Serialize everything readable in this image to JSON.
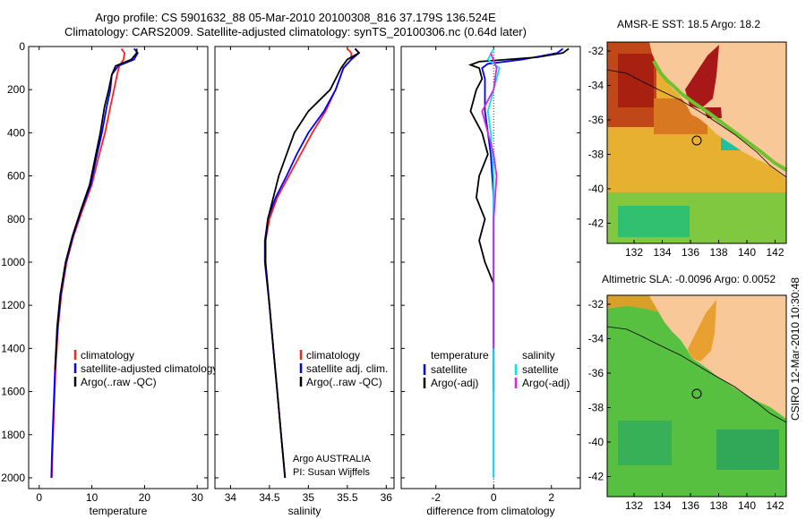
{
  "title_line1": "Argo profile: CS 5901632_88 05-Mar-2010 20100308_816 37.179S 136.524E",
  "title_line2": "Climatology: CARS2009. Satellite-adjusted climatology: synTS_20100306.nc (0.64d later)",
  "credit": "CSIRO 12-Mar-2010 10:30:48",
  "chart_data": [
    {
      "type": "line",
      "xlabel": "temperature",
      "xlim": [
        -2,
        32
      ],
      "ylim": [
        0,
        2050
      ],
      "y_reversed": true,
      "xticks": [
        0,
        10,
        20,
        30
      ],
      "yticks": [
        0,
        200,
        400,
        600,
        800,
        1000,
        1200,
        1400,
        1600,
        1800,
        2000
      ],
      "legend": [
        "climatology",
        "satellite-adjusted climatology",
        "Argo(..raw -QC)"
      ],
      "series": [
        {
          "name": "climatology",
          "color": "#ff2020",
          "points": [
            [
              15.6,
              10
            ],
            [
              16.2,
              30
            ],
            [
              16.0,
              60
            ],
            [
              15.2,
              90
            ],
            [
              14.8,
              130
            ],
            [
              14.2,
              200
            ],
            [
              13.5,
              280
            ],
            [
              12.5,
              400
            ],
            [
              11.2,
              520
            ],
            [
              10.0,
              640
            ],
            [
              8.2,
              760
            ],
            [
              6.5,
              880
            ],
            [
              5.2,
              1000
            ],
            [
              4.2,
              1150
            ],
            [
              3.6,
              1300
            ],
            [
              3.1,
              1500
            ],
            [
              2.8,
              1700
            ],
            [
              2.5,
              1900
            ],
            [
              2.4,
              2000
            ]
          ]
        },
        {
          "name": "satellite-adjusted climatology",
          "color": "#0000ff",
          "points": [
            [
              18.0,
              10
            ],
            [
              18.7,
              30
            ],
            [
              18.0,
              60
            ],
            [
              15.0,
              90
            ],
            [
              13.8,
              130
            ],
            [
              13.5,
              200
            ],
            [
              12.8,
              280
            ],
            [
              11.9,
              400
            ],
            [
              10.8,
              520
            ],
            [
              9.8,
              640
            ],
            [
              8.0,
              760
            ],
            [
              6.4,
              880
            ],
            [
              5.1,
              1000
            ],
            [
              4.1,
              1150
            ],
            [
              3.5,
              1300
            ],
            [
              3.0,
              1500
            ],
            [
              2.7,
              1700
            ],
            [
              2.4,
              1900
            ],
            [
              2.3,
              2000
            ]
          ]
        },
        {
          "name": "Argo(..raw -QC)",
          "color": "#000000",
          "points": [
            [
              18.5,
              10
            ],
            [
              18.5,
              30
            ],
            [
              17.5,
              60
            ],
            [
              14.5,
              90
            ],
            [
              13.8,
              130
            ],
            [
              13.2,
              200
            ],
            [
              12.4,
              280
            ],
            [
              11.6,
              400
            ],
            [
              10.6,
              520
            ],
            [
              9.6,
              640
            ],
            [
              7.9,
              760
            ],
            [
              6.3,
              880
            ],
            [
              5.0,
              1000
            ],
            [
              4.0,
              1150
            ],
            [
              3.4,
              1300
            ],
            [
              3.0,
              1500
            ]
          ]
        }
      ]
    },
    {
      "type": "line",
      "xlabel": "salinity",
      "xlim": [
        33.8,
        36.1
      ],
      "ylim": [
        0,
        2050
      ],
      "y_reversed": true,
      "xticks": [
        34,
        34.5,
        35,
        35.5,
        36
      ],
      "legend": [
        "climatology",
        "satellite adj. clim.",
        "Argo(..raw -QC)"
      ],
      "annotation": [
        "Argo AUSTRALIA",
        "PI: Susan Wijffels"
      ],
      "series": [
        {
          "name": "climatology",
          "color": "#ff2020",
          "points": [
            [
              35.5,
              10
            ],
            [
              35.55,
              30
            ],
            [
              35.55,
              60
            ],
            [
              35.45,
              100
            ],
            [
              35.35,
              200
            ],
            [
              35.22,
              300
            ],
            [
              35.05,
              400
            ],
            [
              34.9,
              500
            ],
            [
              34.75,
              600
            ],
            [
              34.6,
              700
            ],
            [
              34.5,
              800
            ],
            [
              34.45,
              900
            ],
            [
              34.45,
              1000
            ],
            [
              34.5,
              1200
            ],
            [
              34.55,
              1400
            ],
            [
              34.6,
              1600
            ],
            [
              34.65,
              1800
            ],
            [
              34.7,
              2000
            ]
          ]
        },
        {
          "name": "satellite adj. clim.",
          "color": "#0000ff",
          "points": [
            [
              35.6,
              10
            ],
            [
              35.65,
              30
            ],
            [
              35.55,
              60
            ],
            [
              35.45,
              100
            ],
            [
              35.35,
              200
            ],
            [
              35.2,
              300
            ],
            [
              35.0,
              400
            ],
            [
              34.85,
              500
            ],
            [
              34.72,
              600
            ],
            [
              34.58,
              700
            ],
            [
              34.48,
              800
            ],
            [
              34.44,
              900
            ],
            [
              34.44,
              1000
            ],
            [
              34.5,
              1200
            ],
            [
              34.55,
              1400
            ],
            [
              34.6,
              1600
            ],
            [
              34.65,
              1800
            ],
            [
              34.7,
              2000
            ]
          ]
        },
        {
          "name": "Argo(..raw -QC)",
          "color": "#000000",
          "points": [
            [
              35.6,
              10
            ],
            [
              35.65,
              30
            ],
            [
              35.5,
              60
            ],
            [
              35.42,
              100
            ],
            [
              35.28,
              200
            ],
            [
              35.0,
              300
            ],
            [
              34.82,
              400
            ],
            [
              34.72,
              500
            ],
            [
              34.62,
              600
            ],
            [
              34.55,
              700
            ],
            [
              34.48,
              800
            ],
            [
              34.45,
              900
            ],
            [
              34.45,
              1000
            ],
            [
              34.5,
              1200
            ],
            [
              34.55,
              1400
            ],
            [
              34.6,
              1600
            ],
            [
              34.65,
              1800
            ],
            [
              34.7,
              2000
            ]
          ]
        }
      ]
    },
    {
      "type": "line",
      "xlabel": "difference from climatology",
      "xlim": [
        -3.2,
        3.0
      ],
      "ylim": [
        0,
        2050
      ],
      "y_reversed": true,
      "xticks": [
        -2,
        0,
        2
      ],
      "legend_left_title": "temperature",
      "legend_right_title": "salinity",
      "legend": [
        "satellite",
        "Argo(-adj)",
        "satellite",
        "Argo(-adj)"
      ],
      "series": [
        {
          "name": "satellite",
          "group": "temperature",
          "color": "#0000ff",
          "points": [
            [
              2.4,
              10
            ],
            [
              2.2,
              30
            ],
            [
              1.0,
              60
            ],
            [
              -0.2,
              80
            ],
            [
              -0.4,
              100
            ],
            [
              -0.3,
              150
            ],
            [
              -0.3,
              200
            ],
            [
              -0.3,
              300
            ],
            [
              -0.2,
              400
            ],
            [
              -0.1,
              500
            ],
            [
              -0.05,
              600
            ],
            [
              0,
              700
            ],
            [
              0,
              800
            ],
            [
              0,
              1000
            ],
            [
              0,
              1500
            ],
            [
              0,
              2000
            ]
          ]
        },
        {
          "name": "Argo(-adj)",
          "group": "temperature",
          "color": "#000000",
          "points": [
            [
              2.6,
              10
            ],
            [
              2.4,
              30
            ],
            [
              1.5,
              50
            ],
            [
              -0.5,
              70
            ],
            [
              -0.8,
              85
            ],
            [
              -0.5,
              100
            ],
            [
              -0.4,
              150
            ],
            [
              -0.6,
              200
            ],
            [
              -0.8,
              300
            ],
            [
              -0.4,
              400
            ],
            [
              -0.2,
              500
            ],
            [
              -0.5,
              600
            ],
            [
              -0.6,
              700
            ],
            [
              -0.3,
              800
            ],
            [
              -0.5,
              900
            ],
            [
              -0.3,
              1000
            ],
            [
              0,
              1100
            ],
            [
              0,
              1200
            ],
            [
              0,
              1400
            ],
            [
              0,
              1600
            ]
          ]
        },
        {
          "name": "satellite",
          "group": "salinity",
          "color": "#00e8e8",
          "points": [
            [
              0,
              10
            ],
            [
              -0.2,
              60
            ],
            [
              0.2,
              100
            ],
            [
              0,
              200
            ],
            [
              -0.2,
              300
            ],
            [
              -0.1,
              400
            ],
            [
              -0.05,
              500
            ],
            [
              0,
              600
            ],
            [
              0,
              1000
            ],
            [
              0,
              1500
            ],
            [
              0,
              2000
            ]
          ]
        },
        {
          "name": "Argo(-adj)",
          "group": "salinity",
          "color": "#e020e0",
          "points": [
            [
              -0.1,
              30
            ],
            [
              0.1,
              100
            ],
            [
              0.0,
              200
            ],
            [
              -0.4,
              300
            ],
            [
              -0.2,
              400
            ],
            [
              0,
              500
            ],
            [
              0.1,
              600
            ],
            [
              0.0,
              800
            ],
            [
              0,
              1000
            ],
            [
              0,
              1400
            ]
          ]
        }
      ]
    }
  ],
  "maps": [
    {
      "title": "AMSR-E SST: 18.5 Argo: 18.2",
      "xticks": [
        "132",
        "134",
        "136",
        "138",
        "140",
        "142"
      ],
      "yticks": [
        "-32",
        "-34",
        "-36",
        "-38",
        "-40",
        "-42"
      ],
      "colors": {
        "land": "#f8c898",
        "warm": "#e8a020",
        "hot": "#b82010",
        "cool": "#70c030",
        "cold": "#20c080"
      }
    },
    {
      "title": "Altimetric SLA: -0.0096 Argo: 0.0052",
      "xticks": [
        "132",
        "134",
        "136",
        "138",
        "140",
        "142"
      ],
      "yticks": [
        "-32",
        "-34",
        "-36",
        "-38",
        "-40",
        "-42"
      ],
      "colors": {
        "land": "#f8c898",
        "sea": "#50c040",
        "shelf": "#d8a020",
        "deep": "#30b060"
      }
    }
  ]
}
